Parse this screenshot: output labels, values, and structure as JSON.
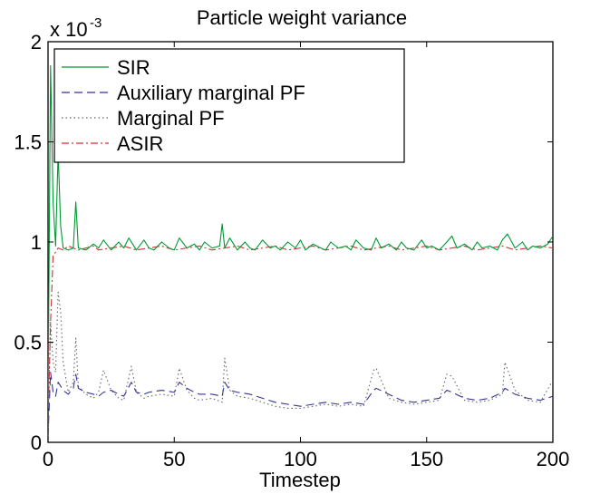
{
  "chart_data": {
    "type": "line",
    "title": "Particle weight variance",
    "xlabel": "Timestep",
    "ylabel": "",
    "xlim": [
      0,
      200
    ],
    "ylim": [
      0,
      0.002
    ],
    "y_multiplier_label": "x 10",
    "y_multiplier_exponent": "-3",
    "x_ticks": [
      0,
      50,
      100,
      150,
      200
    ],
    "x_tick_labels": [
      "0",
      "50",
      "100",
      "150",
      "200"
    ],
    "y_ticks": [
      0,
      0.0005,
      0.001,
      0.0015,
      0.002
    ],
    "y_tick_labels": [
      "0",
      "0.5",
      "1",
      "1.5",
      "2"
    ],
    "grid": false,
    "legend_placement": "top-left",
    "series": [
      {
        "name": "SIR",
        "color": "#009933",
        "dash": "solid",
        "x": [
          0,
          1,
          2,
          3,
          4,
          5,
          6,
          8,
          10,
          11,
          12,
          15,
          18,
          20,
          22,
          25,
          28,
          30,
          32,
          35,
          38,
          40,
          42,
          45,
          48,
          50,
          52,
          55,
          58,
          60,
          62,
          65,
          68,
          69,
          70,
          72,
          75,
          78,
          80,
          82,
          85,
          88,
          90,
          92,
          95,
          98,
          100,
          102,
          105,
          108,
          110,
          112,
          115,
          118,
          120,
          122,
          125,
          128,
          130,
          132,
          135,
          138,
          140,
          142,
          145,
          148,
          150,
          152,
          155,
          158,
          160,
          162,
          165,
          168,
          170,
          172,
          175,
          178,
          180,
          182,
          185,
          188,
          190,
          192,
          195,
          198,
          200
        ],
        "values": [
          0.0002,
          0.00188,
          0.0012,
          0.00098,
          0.00145,
          0.00108,
          0.00097,
          0.00096,
          0.00097,
          0.0012,
          0.00097,
          0.00096,
          0.00099,
          0.00097,
          0.00101,
          0.00096,
          0.001,
          0.00097,
          0.00102,
          0.00096,
          0.00101,
          0.00097,
          0.00096,
          0.001,
          0.00097,
          0.00096,
          0.00102,
          0.00097,
          0.00099,
          0.00096,
          0.001,
          0.00097,
          0.00098,
          0.00109,
          0.00097,
          0.00102,
          0.00096,
          0.001,
          0.00097,
          0.00096,
          0.00101,
          0.00097,
          0.00098,
          0.00096,
          0.001,
          0.00097,
          0.00101,
          0.00096,
          0.00099,
          0.00097,
          0.00096,
          0.001,
          0.00097,
          0.00098,
          0.00096,
          0.00101,
          0.00097,
          0.00096,
          0.00102,
          0.00097,
          0.00099,
          0.00096,
          0.001,
          0.00097,
          0.00096,
          0.00101,
          0.00097,
          0.00098,
          0.00096,
          0.001,
          0.00103,
          0.00097,
          0.00099,
          0.00096,
          0.001,
          0.00097,
          0.00098,
          0.00096,
          0.00101,
          0.00104,
          0.00097,
          0.001,
          0.00096,
          0.00098,
          0.00097,
          0.00099,
          0.00103
        ]
      },
      {
        "name": "Auxiliary marginal PF",
        "color": "#333399",
        "dash": "dashed",
        "x": [
          0,
          1,
          2,
          3,
          4,
          6,
          8,
          10,
          11,
          12,
          15,
          18,
          20,
          22,
          25,
          28,
          30,
          33,
          35,
          38,
          40,
          45,
          50,
          52,
          55,
          58,
          60,
          65,
          69,
          70,
          72,
          75,
          80,
          85,
          90,
          95,
          100,
          105,
          110,
          115,
          120,
          125,
          129,
          130,
          135,
          140,
          145,
          150,
          155,
          158,
          160,
          165,
          170,
          175,
          180,
          181,
          185,
          190,
          195,
          200
        ],
        "values": [
          3e-05,
          0.00035,
          0.00025,
          0.00023,
          0.0003,
          0.00026,
          0.00024,
          0.00027,
          0.00034,
          0.00027,
          0.00025,
          0.00024,
          0.00023,
          0.00025,
          0.00026,
          0.00024,
          0.00023,
          0.0003,
          0.00025,
          0.00024,
          0.00025,
          0.00026,
          0.00025,
          0.0003,
          0.00027,
          0.00025,
          0.00024,
          0.00024,
          0.00023,
          0.0003,
          0.00026,
          0.00025,
          0.00024,
          0.00022,
          0.0002,
          0.00019,
          0.00018,
          0.00019,
          0.0002,
          0.00019,
          0.0002,
          0.00019,
          0.00026,
          0.00027,
          0.00024,
          0.00021,
          0.0002,
          0.00021,
          0.00022,
          0.00026,
          0.00025,
          0.00022,
          0.00021,
          0.00022,
          0.00025,
          0.00027,
          0.00024,
          0.00022,
          0.00021,
          0.00023
        ]
      },
      {
        "name": "Marginal PF",
        "color": "#666666",
        "dash": "dotted",
        "x": [
          0,
          1,
          2,
          3,
          4,
          5,
          6,
          8,
          10,
          11,
          12,
          15,
          18,
          20,
          22,
          25,
          28,
          30,
          33,
          35,
          38,
          40,
          45,
          50,
          52,
          55,
          58,
          60,
          65,
          69,
          70,
          72,
          75,
          80,
          85,
          90,
          95,
          100,
          105,
          110,
          115,
          120,
          125,
          129,
          130,
          135,
          140,
          145,
          150,
          155,
          158,
          160,
          165,
          170,
          175,
          180,
          181,
          185,
          190,
          195,
          200
        ],
        "values": [
          5e-05,
          0.0006,
          0.0004,
          0.00035,
          0.00075,
          0.00065,
          0.0004,
          0.00025,
          0.0003,
          0.00052,
          0.00028,
          0.00024,
          0.00022,
          0.00025,
          0.00036,
          0.00026,
          0.00022,
          0.00021,
          0.00038,
          0.00025,
          0.00022,
          0.00023,
          0.00024,
          0.00023,
          0.00037,
          0.00026,
          0.00022,
          0.00021,
          0.00022,
          0.0002,
          0.00042,
          0.00026,
          0.00023,
          0.00022,
          0.0002,
          0.00018,
          0.00017,
          0.00017,
          0.00018,
          0.00019,
          0.00018,
          0.00019,
          0.00018,
          0.00036,
          0.00037,
          0.00022,
          0.0002,
          0.00019,
          0.0002,
          0.00021,
          0.00034,
          0.00033,
          0.00021,
          0.0002,
          0.00021,
          0.00024,
          0.0004,
          0.00026,
          0.00021,
          0.0002,
          0.00031
        ]
      },
      {
        "name": "ASIR",
        "color": "#cc3333",
        "dash": "dashdot",
        "x": [
          0,
          1,
          2,
          4,
          6,
          8,
          10,
          12,
          15,
          18,
          20,
          25,
          30,
          35,
          40,
          45,
          50,
          55,
          60,
          65,
          70,
          75,
          80,
          85,
          90,
          95,
          100,
          105,
          110,
          115,
          120,
          125,
          130,
          135,
          140,
          145,
          150,
          155,
          160,
          165,
          170,
          175,
          180,
          185,
          190,
          195,
          200
        ],
        "values": [
          0.0001,
          0.0006,
          0.00093,
          0.00097,
          0.00096,
          0.00098,
          0.00097,
          0.00096,
          0.00097,
          0.00098,
          0.00096,
          0.00097,
          0.00098,
          0.00096,
          0.00097,
          0.00098,
          0.00096,
          0.00097,
          0.00098,
          0.00096,
          0.00097,
          0.00098,
          0.00096,
          0.00097,
          0.00098,
          0.00096,
          0.00097,
          0.00098,
          0.00096,
          0.00097,
          0.00098,
          0.00096,
          0.00097,
          0.00098,
          0.00096,
          0.00097,
          0.00098,
          0.00096,
          0.00097,
          0.00098,
          0.00096,
          0.00097,
          0.00098,
          0.00096,
          0.00097,
          0.00098,
          0.00097
        ]
      }
    ]
  }
}
